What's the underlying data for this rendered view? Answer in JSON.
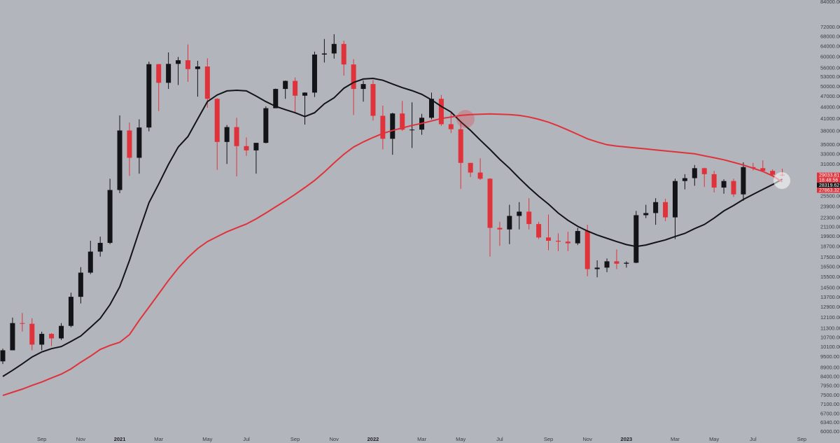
{
  "chart_data": {
    "type": "candlestick",
    "log_scale": true,
    "grid": false,
    "up_color": "#131417",
    "down_color": "#e0323a",
    "categories": [
      null,
      null,
      null,
      null,
      "Sep",
      null,
      null,
      null,
      "Nov",
      null,
      null,
      null,
      "2021",
      null,
      null,
      null,
      "Mar",
      null,
      null,
      null,
      null,
      "May",
      null,
      null,
      null,
      "Jul",
      null,
      null,
      null,
      null,
      "Sep",
      null,
      null,
      null,
      "Nov",
      null,
      null,
      null,
      "2022",
      null,
      null,
      null,
      null,
      "Mar",
      null,
      null,
      null,
      "May",
      null,
      null,
      null,
      "Jul",
      null,
      null,
      null,
      null,
      "Sep",
      null,
      null,
      null,
      "Nov",
      null,
      null,
      null,
      "2023",
      null,
      null,
      null,
      null,
      "Mar",
      null,
      null,
      null,
      "May",
      null,
      null,
      null,
      "Jul",
      null,
      null,
      null,
      null,
      "Sep"
    ],
    "open": [
      9250,
      9900,
      11700,
      11650,
      10250,
      10950,
      10650,
      11500,
      13750,
      15950,
      18150,
      19150,
      26500,
      38200,
      32300,
      38900,
      57400,
      51200,
      57500,
      58800,
      55700,
      56600,
      46400,
      35600,
      39000,
      34700,
      33800,
      35400,
      43800,
      49300,
      51800,
      47300,
      48200,
      60900,
      61300,
      65000,
      57300,
      49300,
      50800,
      41800,
      36300,
      42400,
      38400,
      38400,
      41300,
      46400,
      39700,
      38500,
      31300,
      29500,
      28400,
      21000,
      20800,
      22600,
      23200,
      21500,
      19800,
      19400,
      19300,
      19100,
      20600,
      16300,
      16450,
      17100,
      16850,
      16950,
      22700,
      23000,
      24600,
      22400,
      28000,
      28500,
      30300,
      29200,
      26900,
      28000,
      25800,
      30500,
      30300,
      29800,
      29100,
      null,
      null
    ],
    "high": [
      10000,
      12100,
      12450,
      12050,
      11100,
      11000,
      11700,
      14100,
      16500,
      19400,
      19900,
      28400,
      41900,
      40100,
      40900,
      58300,
      57500,
      61700,
      60000,
      64800,
      58600,
      59500,
      46600,
      39500,
      41300,
      36600,
      35400,
      44300,
      49400,
      51900,
      52900,
      48300,
      62000,
      67000,
      69000,
      66300,
      59200,
      51900,
      52100,
      44500,
      42600,
      45800,
      45400,
      42300,
      48200,
      47500,
      42900,
      40000,
      31300,
      32200,
      28500,
      21800,
      24200,
      24600,
      25200,
      21800,
      22800,
      20300,
      20500,
      21000,
      21400,
      17200,
      17400,
      18400,
      17100,
      23300,
      24200,
      25200,
      25100,
      28400,
      29200,
      30900,
      30400,
      29800,
      28300,
      28400,
      31400,
      31300,
      31800,
      30100,
      30200,
      null,
      null
    ],
    "low": [
      9100,
      9900,
      11100,
      9900,
      9900,
      10150,
      10550,
      11400,
      13200,
      15800,
      17600,
      19000,
      26000,
      28900,
      29300,
      38000,
      43000,
      49300,
      50500,
      51500,
      47000,
      43900,
      30000,
      31100,
      28800,
      32700,
      29300,
      35300,
      43800,
      46400,
      42800,
      39600,
      46900,
      58000,
      59400,
      53500,
      42000,
      45600,
      40600,
      34000,
      32900,
      38100,
      34300,
      37200,
      40900,
      39300,
      37600,
      26700,
      28700,
      28200,
      17600,
      18800,
      19000,
      20800,
      20800,
      19600,
      18300,
      18200,
      18200,
      18900,
      15600,
      15500,
      16000,
      16300,
      16450,
      16900,
      22300,
      21400,
      21900,
      19600,
      26600,
      27200,
      27000,
      26100,
      25900,
      25400,
      24800,
      29900,
      29700,
      28900,
      28800,
      null,
      null
    ],
    "close": [
      9900,
      11700,
      11650,
      10250,
      10950,
      10650,
      11500,
      13750,
      15950,
      18150,
      19150,
      26500,
      38200,
      32300,
      38900,
      57400,
      51200,
      57500,
      58800,
      55700,
      56600,
      46400,
      35600,
      39000,
      34700,
      33800,
      35400,
      43800,
      49300,
      51800,
      47300,
      48200,
      60900,
      61300,
      65000,
      57300,
      49300,
      50800,
      41800,
      36300,
      42400,
      38400,
      38400,
      41300,
      46400,
      39700,
      38500,
      31300,
      29500,
      28400,
      21000,
      20800,
      22600,
      23200,
      21500,
      19800,
      19400,
      19300,
      19100,
      20600,
      16300,
      16450,
      17100,
      16850,
      16950,
      22700,
      23000,
      24600,
      22400,
      28000,
      28500,
      30300,
      29200,
      26900,
      28000,
      25800,
      30500,
      30300,
      29800,
      29100,
      29033.81,
      null,
      null
    ],
    "lines": [
      {
        "color": "#131417",
        "values": [
          8430,
          8750,
          9110,
          9500,
          9800,
          10000,
          10130,
          10450,
          10810,
          11400,
          12040,
          13100,
          14610,
          17200,
          20600,
          24500,
          27500,
          31000,
          34500,
          36800,
          41000,
          45600,
          47500,
          48700,
          48900,
          48700,
          47200,
          45600,
          44300,
          43400,
          42600,
          41600,
          42600,
          45000,
          46700,
          49500,
          51300,
          52400,
          52600,
          52000,
          50800,
          49700,
          48800,
          47700,
          46100,
          44300,
          42800,
          40300,
          38200,
          36000,
          34000,
          32000,
          30300,
          28500,
          26900,
          25500,
          24300,
          23000,
          22000,
          21200,
          20600,
          20100,
          19700,
          19300,
          18950,
          18730,
          18900,
          19200,
          19500,
          19920,
          20300,
          20900,
          21440,
          22300,
          23300,
          24100,
          25000,
          25800,
          26600,
          27400,
          28319.62,
          null,
          null
        ]
      },
      {
        "color": "#e0323a",
        "values": [
          7500,
          7650,
          7800,
          7980,
          8150,
          8350,
          8550,
          8830,
          9200,
          9550,
          9950,
          10200,
          10400,
          10900,
          11900,
          12900,
          14000,
          15200,
          16400,
          17500,
          18500,
          19300,
          19900,
          20500,
          21000,
          21500,
          22200,
          23000,
          23900,
          24800,
          25800,
          26900,
          28100,
          29600,
          31300,
          33000,
          34500,
          35600,
          36600,
          37500,
          38200,
          38800,
          39400,
          39900,
          40500,
          41100,
          41500,
          41900,
          42100,
          42200,
          42300,
          42200,
          42100,
          41900,
          41500,
          40900,
          40200,
          39300,
          38300,
          37300,
          36300,
          35600,
          35000,
          34700,
          34500,
          34300,
          34100,
          33900,
          33700,
          33500,
          33300,
          33100,
          32700,
          32300,
          31900,
          31400,
          30900,
          30300,
          29700,
          28900,
          27863.32,
          null,
          null
        ]
      }
    ],
    "ylim": [
      5923,
      85140
    ],
    "yticks": [
      {
        "value": 84000,
        "label": "84000.00"
      },
      {
        "value": 72000,
        "label": "72000.00"
      },
      {
        "value": 68000,
        "label": "68000.00"
      },
      {
        "value": 64000,
        "label": "64000.00"
      },
      {
        "value": 60000,
        "label": "60000.00"
      },
      {
        "value": 56000,
        "label": "56000.00"
      },
      {
        "value": 53000,
        "label": "53000.00"
      },
      {
        "value": 50000,
        "label": "50000.00"
      },
      {
        "value": 47000,
        "label": "47000.00"
      },
      {
        "value": 44000,
        "label": "44000.00"
      },
      {
        "value": 41000,
        "label": "41000.00"
      },
      {
        "value": 38000,
        "label": "38000.00"
      },
      {
        "value": 35000,
        "label": "35000.00"
      },
      {
        "value": 33000,
        "label": "33000.00"
      },
      {
        "value": 31000,
        "label": "31000.00"
      },
      {
        "value": 25500,
        "label": "25500.00"
      },
      {
        "value": 23900,
        "label": "23900.00"
      },
      {
        "value": 22300,
        "label": "22300.00"
      },
      {
        "value": 21100,
        "label": "21100.00"
      },
      {
        "value": 19900,
        "label": "19900.00"
      },
      {
        "value": 18700,
        "label": "18700.00"
      },
      {
        "value": 17500,
        "label": "17500.00"
      },
      {
        "value": 16500,
        "label": "16500.00"
      },
      {
        "value": 15500,
        "label": "15500.00"
      },
      {
        "value": 14500,
        "label": "14500.00"
      },
      {
        "value": 13700,
        "label": "13700.00"
      },
      {
        "value": 12900,
        "label": "12900.00"
      },
      {
        "value": 12100,
        "label": "12100.00"
      },
      {
        "value": 11300,
        "label": "11300.00"
      },
      {
        "value": 10700,
        "label": "10700.00"
      },
      {
        "value": 10100,
        "label": "10100.00"
      },
      {
        "value": 9500,
        "label": "9500.00"
      },
      {
        "value": 8900,
        "label": "8900.00"
      },
      {
        "value": 8400,
        "label": "8400.00"
      },
      {
        "value": 7950,
        "label": "7950.00"
      },
      {
        "value": 7500,
        "label": "7500.00"
      },
      {
        "value": 7100,
        "label": "7100.00"
      },
      {
        "value": 6700,
        "label": "6700.00"
      },
      {
        "value": 6340,
        "label": "6340.00"
      },
      {
        "value": 6000,
        "label": "6000.00"
      }
    ],
    "price_labels": [
      {
        "value": 29033.81,
        "label": "29033.81",
        "color": "#e0323a"
      },
      {
        "value": 28319.62,
        "label": "28319.62",
        "color": "#131417"
      },
      {
        "value": 27863.32,
        "label": "27863.32",
        "color": "#e0323a"
      }
    ],
    "countdown": "18:48:56"
  }
}
